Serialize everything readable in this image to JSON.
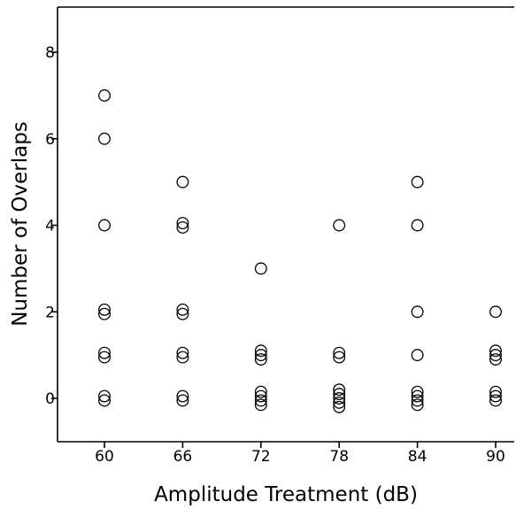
{
  "chart_data": {
    "type": "scatter",
    "title": "",
    "xlabel": "Amplitude Treatment (dB)",
    "ylabel": "Number of Overlaps",
    "x_ticks": [
      "60",
      "66",
      "72",
      "78",
      "84",
      "90"
    ],
    "y_ticks": [
      "0",
      "2",
      "4",
      "6",
      "8"
    ],
    "xlim": [
      56.5,
      91.5
    ],
    "ylim": [
      -1,
      9
    ],
    "grid": false,
    "legend": "none",
    "marker": "open-circle",
    "series": [
      {
        "points": [
          [
            60,
            7
          ],
          [
            60,
            6
          ],
          [
            60,
            4
          ],
          [
            60,
            2.05
          ],
          [
            60,
            1.95
          ],
          [
            60,
            1.05
          ],
          [
            60,
            0.95
          ],
          [
            60,
            0.05
          ],
          [
            60,
            -0.05
          ],
          [
            66,
            5
          ],
          [
            66,
            4.05
          ],
          [
            66,
            3.95
          ],
          [
            66,
            2.05
          ],
          [
            66,
            1.95
          ],
          [
            66,
            1.05
          ],
          [
            66,
            0.95
          ],
          [
            66,
            0.05
          ],
          [
            66,
            -0.05
          ],
          [
            72,
            3
          ],
          [
            72,
            1.1
          ],
          [
            72,
            1.0
          ],
          [
            72,
            0.9
          ],
          [
            72,
            0.15
          ],
          [
            72,
            0.05
          ],
          [
            72,
            -0.05
          ],
          [
            72,
            -0.15
          ],
          [
            78,
            4
          ],
          [
            78,
            1.05
          ],
          [
            78,
            0.95
          ],
          [
            78,
            0.2
          ],
          [
            78,
            0.1
          ],
          [
            78,
            0.0
          ],
          [
            78,
            -0.1
          ],
          [
            78,
            -0.2
          ],
          [
            84,
            5
          ],
          [
            84,
            4
          ],
          [
            84,
            2
          ],
          [
            84,
            1
          ],
          [
            84,
            0.15
          ],
          [
            84,
            0.05
          ],
          [
            84,
            -0.05
          ],
          [
            84,
            -0.15
          ],
          [
            90,
            2
          ],
          [
            90,
            1.1
          ],
          [
            90,
            1.0
          ],
          [
            90,
            0.9
          ],
          [
            90,
            0.15
          ],
          [
            90,
            0.05
          ],
          [
            90,
            -0.05
          ]
        ]
      }
    ]
  }
}
